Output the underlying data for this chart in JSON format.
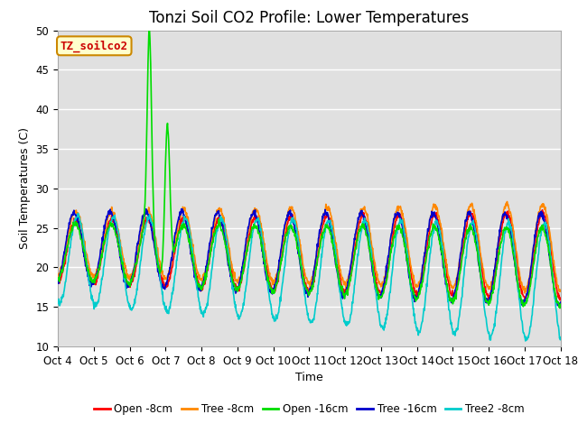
{
  "title": "Tonzi Soil CO2 Profile: Lower Temperatures",
  "xlabel": "Time",
  "ylabel": "Soil Temperatures (C)",
  "ylim": [
    10,
    50
  ],
  "annotation_text": "TZ_soilco2",
  "annotation_color": "#cc0000",
  "annotation_bg": "#ffffcc",
  "annotation_border": "#cc8800",
  "background_color": "#e0e0e0",
  "grid_color": "#ffffff",
  "tick_labels": [
    "Oct 4",
    "Oct 5",
    "Oct 6",
    "Oct 7",
    "Oct 8",
    "Oct 9",
    "Oct 10",
    "Oct 11",
    "Oct 12",
    "Oct 13",
    "Oct 14",
    "Oct 15",
    "Oct 16",
    "Oct 17",
    "Oct 18"
  ],
  "legend_labels": [
    "Open -8cm",
    "Tree -8cm",
    "Open -16cm",
    "Tree -16cm",
    "Tree2 -8cm"
  ],
  "legend_colors": [
    "#ff0000",
    "#ff8800",
    "#00dd00",
    "#0000cc",
    "#00cccc"
  ],
  "title_fontsize": 12,
  "label_fontsize": 9,
  "tick_fontsize": 8.5
}
